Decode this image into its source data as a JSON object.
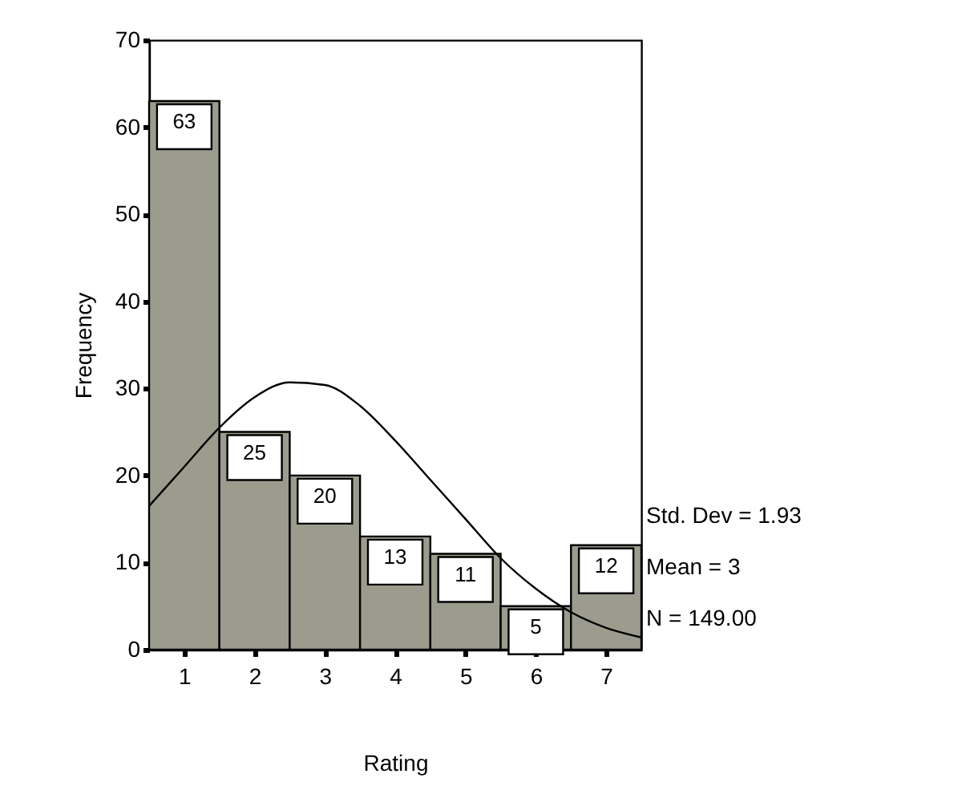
{
  "chart_data": {
    "type": "histogram",
    "xlabel": "Rating",
    "ylabel": "Frequency",
    "bins": [
      0.5,
      1.5,
      2.5,
      3.5,
      4.5,
      5.5,
      6.5,
      7.5
    ],
    "values": [
      63,
      25,
      20,
      13,
      11,
      5,
      12
    ],
    "color": "#9c9c8e",
    "xlim": [
      0.5,
      7.5
    ],
    "xticks": [
      1,
      2,
      3,
      4,
      5,
      6,
      7
    ],
    "ylim": [
      0,
      70
    ],
    "yticks": [
      0,
      10,
      20,
      30,
      40,
      50,
      60,
      70
    ],
    "value_labels": [
      "63",
      "25",
      "20",
      "13",
      "11",
      "5",
      "12"
    ],
    "annotations": [
      "Std. Dev = 1.93",
      "Mean = 3",
      "N = 149.00"
    ],
    "series": [
      {
        "type": "line",
        "color": "#000000",
        "x": [
          0.5,
          1,
          1.5,
          2,
          2.5,
          3,
          3.5,
          4,
          4.5,
          5,
          5.5,
          6,
          6.5,
          7,
          7.5
        ],
        "values": [
          16.5,
          21,
          25.5,
          29,
          30.7,
          30.4,
          28,
          24,
          19.5,
          15,
          10.5,
          7,
          4.3,
          2.5,
          1.4
        ]
      }
    ]
  }
}
